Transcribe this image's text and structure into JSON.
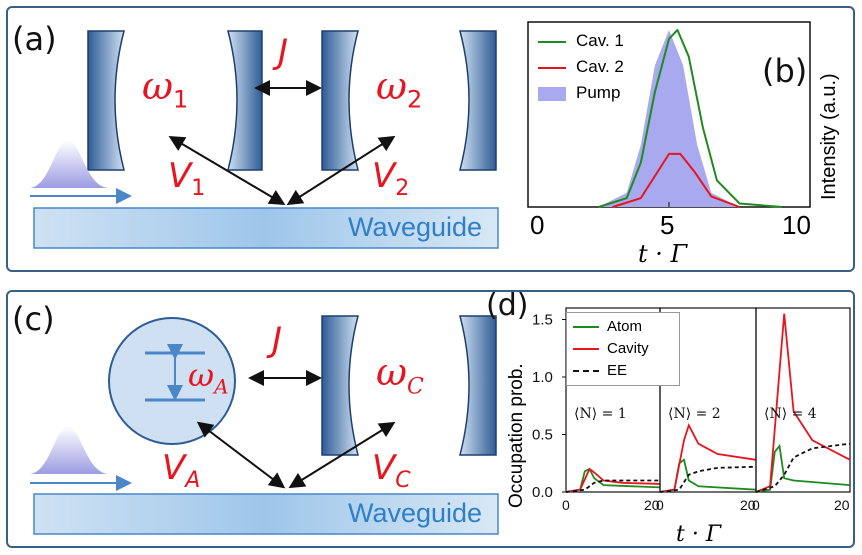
{
  "panels": {
    "a": {
      "label": "(a)",
      "omega1": "ω",
      "omega1_sub": "1",
      "omega2": "ω",
      "omega2_sub": "2",
      "J": "J",
      "V1": "V",
      "V1_sub": "1",
      "V2": "V",
      "V2_sub": "2",
      "waveguide": "Waveguide"
    },
    "b": {
      "label": "(b)",
      "ylabel": "Intensity (a.u.)",
      "xlabel": "t · Γ",
      "legend": [
        "Cav. 1",
        "Cav. 2",
        "Pump"
      ],
      "xticks": [
        "0",
        "5",
        "10"
      ]
    },
    "c": {
      "label": "(c)",
      "omegaA": "ω",
      "omegaA_sub": "A",
      "omegaC": "ω",
      "omegaC_sub": "C",
      "J": "J",
      "VA": "V",
      "VA_sub": "A",
      "VC": "V",
      "VC_sub": "C",
      "waveguide": "Waveguide"
    },
    "d": {
      "label": "(d)",
      "ylabel": "Occupation prob.",
      "xlabel": "t · Γ",
      "legend": [
        "Atom",
        "Cavity",
        "EE"
      ],
      "yticks": [
        "0.0",
        "0.5",
        "1.0",
        "1.5"
      ],
      "subplots": [
        "⟨N⟩ = 1",
        "⟨N⟩ = 2",
        "⟨N⟩ = 4"
      ],
      "xticks": [
        "0",
        "20"
      ]
    }
  },
  "colors": {
    "accent_red": "#e8141e",
    "waveguide_blue": "#2f7fc8",
    "green": "#1f8a1f",
    "pump": "#a9a9f0",
    "frame": "#3a5f86"
  },
  "chart_data": [
    {
      "type": "area",
      "xlim": [
        0,
        10
      ],
      "series": [
        {
          "name": "Pump",
          "x": [
            2.5,
            3.5,
            4.0,
            4.5,
            5.0,
            5.5,
            6.0,
            6.5,
            7.5
          ],
          "values": [
            0.0,
            0.08,
            0.35,
            0.8,
            1.0,
            0.8,
            0.35,
            0.08,
            0.0
          ]
        },
        {
          "name": "Cav. 1",
          "x": [
            2.5,
            3.5,
            4.0,
            4.5,
            5.0,
            5.3,
            5.7,
            6.2,
            6.7,
            7.5,
            9.0
          ],
          "values": [
            0.0,
            0.05,
            0.25,
            0.65,
            0.95,
            1.0,
            0.85,
            0.45,
            0.15,
            0.02,
            0.0
          ]
        },
        {
          "name": "Cav. 2",
          "x": [
            3.0,
            4.0,
            4.6,
            5.0,
            5.4,
            5.9,
            6.5,
            7.5
          ],
          "values": [
            0.0,
            0.05,
            0.2,
            0.3,
            0.3,
            0.2,
            0.06,
            0.0
          ]
        }
      ]
    },
    {
      "type": "line",
      "panels": [
        "⟨N⟩ = 1",
        "⟨N⟩ = 2",
        "⟨N⟩ = 4"
      ],
      "ylim": [
        0,
        1.6
      ],
      "xlim": [
        0,
        20
      ],
      "series": [
        {
          "name": "Atom",
          "panel": 0,
          "x": [
            0,
            3,
            4,
            5,
            6,
            8,
            20
          ],
          "values": [
            0,
            0.02,
            0.18,
            0.2,
            0.12,
            0.06,
            0.04
          ]
        },
        {
          "name": "Cavity",
          "panel": 0,
          "x": [
            0,
            3,
            5,
            6,
            8,
            12,
            20
          ],
          "values": [
            0,
            0.02,
            0.2,
            0.17,
            0.1,
            0.08,
            0.07
          ]
        },
        {
          "name": "EE",
          "panel": 0,
          "x": [
            0,
            4,
            6,
            8,
            12,
            20
          ],
          "values": [
            0,
            0.02,
            0.08,
            0.1,
            0.1,
            0.1
          ]
        },
        {
          "name": "Atom",
          "panel": 1,
          "x": [
            0,
            3,
            4,
            5,
            6,
            8,
            20
          ],
          "values": [
            0,
            0.02,
            0.25,
            0.28,
            0.1,
            0.05,
            0.02
          ]
        },
        {
          "name": "Cavity",
          "panel": 1,
          "x": [
            0,
            3,
            5,
            6,
            8,
            12,
            20
          ],
          "values": [
            0,
            0.02,
            0.45,
            0.58,
            0.42,
            0.33,
            0.28
          ]
        },
        {
          "name": "EE",
          "panel": 1,
          "x": [
            0,
            4,
            6,
            8,
            12,
            20
          ],
          "values": [
            0,
            0.02,
            0.15,
            0.18,
            0.21,
            0.22
          ]
        },
        {
          "name": "Atom",
          "panel": 2,
          "x": [
            0,
            3,
            4,
            5,
            6,
            8,
            20
          ],
          "values": [
            0,
            0.02,
            0.35,
            0.4,
            0.12,
            0.1,
            0.06
          ]
        },
        {
          "name": "Cavity",
          "panel": 2,
          "x": [
            0,
            3,
            4.5,
            6,
            8,
            12,
            20
          ],
          "values": [
            0,
            0.05,
            0.8,
            1.55,
            0.7,
            0.45,
            0.28
          ]
        },
        {
          "name": "EE",
          "panel": 2,
          "x": [
            0,
            4,
            6,
            8,
            12,
            20
          ],
          "values": [
            0,
            0.05,
            0.15,
            0.3,
            0.38,
            0.42
          ]
        }
      ]
    }
  ]
}
